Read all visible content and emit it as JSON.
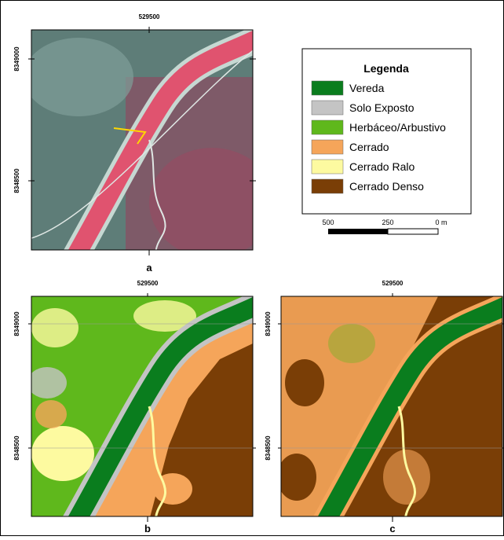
{
  "panels": [
    {
      "label": "a",
      "x_label": "529500",
      "y_labels": [
        "8349000",
        "8348500"
      ]
    },
    {
      "label": "b",
      "x_label": "529500",
      "y_labels": [
        "8349000",
        "8348500"
      ]
    },
    {
      "label": "c",
      "x_label": "529500",
      "y_labels": [
        "8349000",
        "8348500"
      ]
    }
  ],
  "legend": {
    "title": "Legenda",
    "items": [
      {
        "label": "Vereda",
        "color": "#0a7d1e"
      },
      {
        "label": "Solo Exposto",
        "color": "#c4c4c4"
      },
      {
        "label": "Herbáceo/Arbustivo",
        "color": "#5fb81c"
      },
      {
        "label": "Cerrado",
        "color": "#f5a55a"
      },
      {
        "label": "Cerrado Ralo",
        "color": "#fdfaa0"
      },
      {
        "label": "Cerrado Denso",
        "color": "#7a3e06"
      }
    ]
  },
  "scale_bar": {
    "labels": [
      "500",
      "250",
      "0 m"
    ]
  }
}
